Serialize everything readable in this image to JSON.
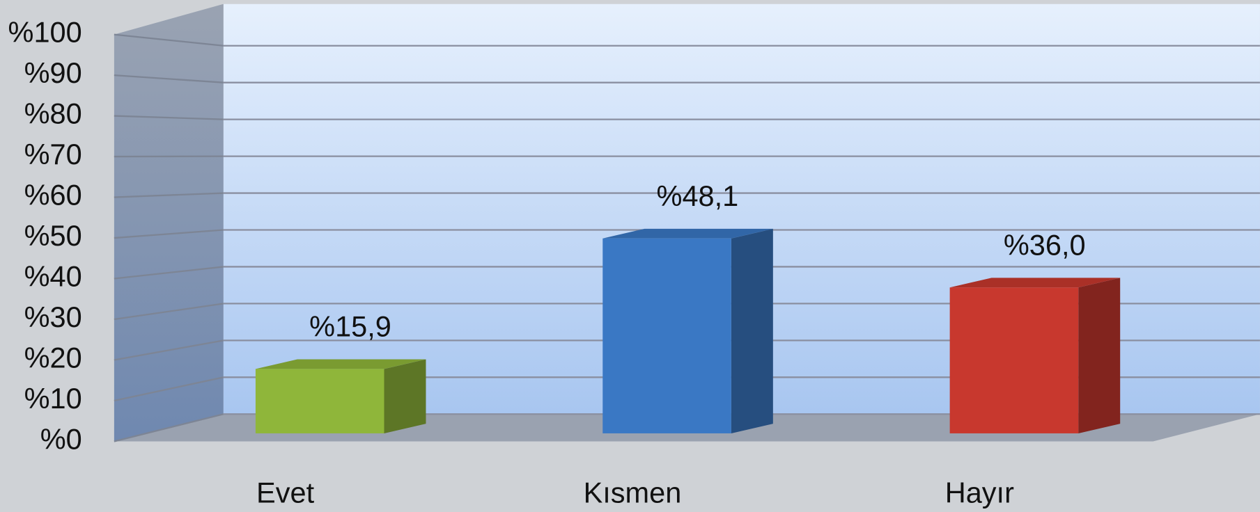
{
  "chart_data": {
    "type": "bar",
    "categories": [
      "Evet",
      "Kısmen",
      "Hayır"
    ],
    "values": [
      15.9,
      48.1,
      36.0
    ],
    "value_labels": [
      "%15,9",
      "%48,1",
      "%36,0"
    ],
    "colors": [
      "#8fb63a",
      "#3a78c4",
      "#c8382e"
    ],
    "ylim": [
      0,
      100
    ],
    "yticks": [
      {
        "value": 0,
        "label": "%0"
      },
      {
        "value": 10,
        "label": "%10"
      },
      {
        "value": 20,
        "label": "%20"
      },
      {
        "value": 30,
        "label": "%30"
      },
      {
        "value": 40,
        "label": "%40"
      },
      {
        "value": 50,
        "label": "%50"
      },
      {
        "value": 60,
        "label": "%60"
      },
      {
        "value": 70,
        "label": "%70"
      },
      {
        "value": 80,
        "label": "%80"
      },
      {
        "value": 90,
        "label": "%90"
      },
      {
        "value": 100,
        "label": "%100"
      }
    ],
    "grid": true
  }
}
